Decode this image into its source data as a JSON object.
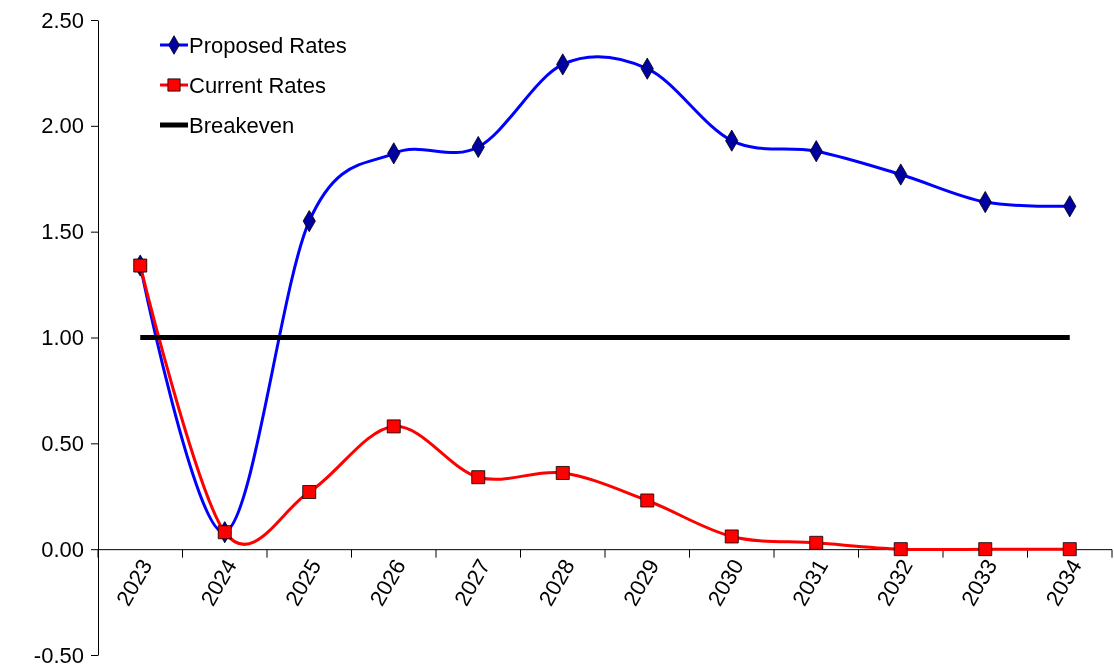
{
  "chart_data": {
    "type": "line",
    "categories": [
      "2023",
      "2024",
      "2025",
      "2026",
      "2027",
      "2028",
      "2029",
      "2030",
      "2031",
      "2032",
      "2033",
      "2034"
    ],
    "series": [
      {
        "name": "Proposed Rates",
        "color": "#0000ff",
        "marker": "diamond",
        "values": [
          1.34,
          0.08,
          1.55,
          1.87,
          1.9,
          2.29,
          2.27,
          1.93,
          1.88,
          1.77,
          1.64,
          1.62
        ]
      },
      {
        "name": "Current Rates",
        "color": "#ff0000",
        "marker": "square",
        "values": [
          1.34,
          0.08,
          0.27,
          0.58,
          0.34,
          0.36,
          0.23,
          0.06,
          0.03,
          0,
          0,
          0
        ]
      },
      {
        "name": "Breakeven",
        "color": "#000000",
        "marker": "none",
        "values": [
          1,
          1,
          1,
          1,
          1,
          1,
          1,
          1,
          1,
          1,
          1,
          1
        ]
      }
    ],
    "ylim": [
      -0.5,
      2.5
    ],
    "yticks": [
      {
        "value": -0.5,
        "label": "-0.50"
      },
      {
        "value": 0,
        "label": "0.00"
      },
      {
        "value": 0.5,
        "label": "0.50"
      },
      {
        "value": 1,
        "label": "1.00"
      },
      {
        "value": 1.5,
        "label": "1.50"
      },
      {
        "value": 2,
        "label": "2.00"
      },
      {
        "value": 2.5,
        "label": "2.50"
      }
    ],
    "grid": false,
    "legend": "top left"
  }
}
